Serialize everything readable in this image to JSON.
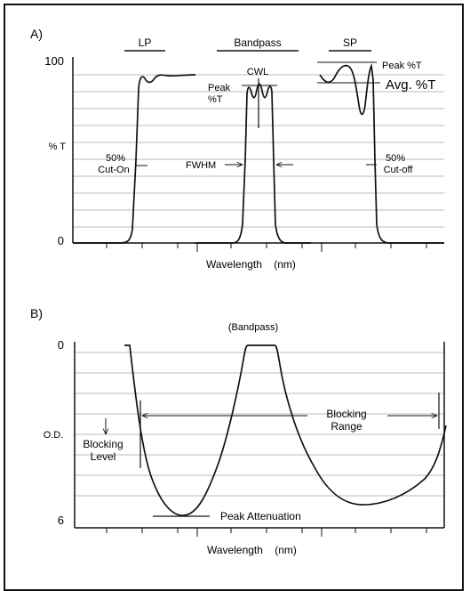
{
  "panel_a": {
    "label": "A)",
    "y_top": "100",
    "y_mid": "% T",
    "y_bottom": "0",
    "x_label": "Wavelength    (nm)",
    "header_lp": "LP",
    "header_bandpass": "Bandpass",
    "header_sp": "SP",
    "cwl": "CWL",
    "peak_line1": "Peak",
    "peak_line2": "%T",
    "peak_sp": "Peak %T",
    "avg_sp": "Avg. %T",
    "cuton_line1": "50%",
    "cuton_line2": "Cut-On",
    "fwhm": "FWHM",
    "cutoff_line1": "50%",
    "cutoff_line2": "Cut-off"
  },
  "panel_b": {
    "label": "B)",
    "title": "(Bandpass)",
    "y_top": "0",
    "y_mid": "O.D.",
    "y_bottom": "6",
    "x_label": "Wavelength    (nm)",
    "blocking_level_1": "Blocking",
    "blocking_level_2": "Level",
    "blocking_range_1": "Blocking",
    "blocking_range_2": "Range",
    "peak_attenuation": "Peak Attenuation"
  }
}
